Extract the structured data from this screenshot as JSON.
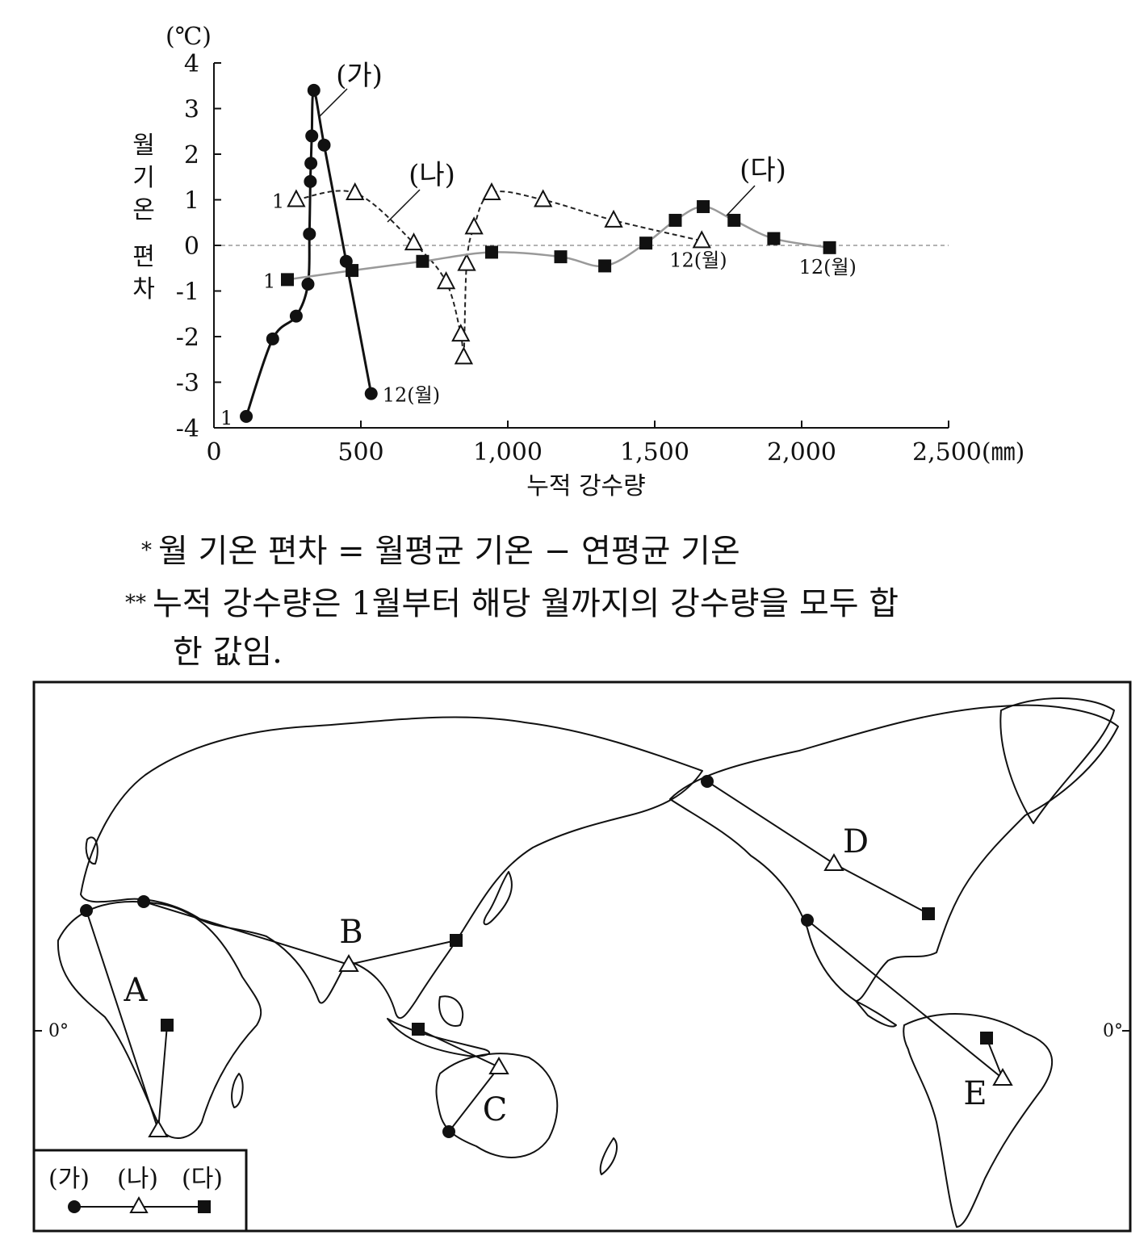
{
  "chart_data": {
    "type": "line",
    "y_unit": "(℃)",
    "ylabel": "월 기온 편차",
    "xlabel": "누적 강수량",
    "xlim": [
      0,
      2500
    ],
    "ylim": [
      -4,
      4
    ],
    "x_ticks": [
      "0",
      "500",
      "1,000",
      "1,500",
      "2,000",
      "2,500(㎜)"
    ],
    "x_tick_values": [
      0,
      500,
      1000,
      1500,
      2000,
      2500
    ],
    "y_ticks": [
      "4",
      "3",
      "2",
      "1",
      "0",
      "-1",
      "-2",
      "-3",
      "-4"
    ],
    "y_tick_values": [
      4,
      3,
      2,
      1,
      0,
      -1,
      -2,
      -3,
      -4
    ],
    "series": [
      {
        "name": "(가)",
        "marker": "circle",
        "line": "solid-black",
        "start_label": "1",
        "end_label": "12(월)",
        "x": [
          110,
          200,
          280,
          320,
          325,
          328,
          330,
          333,
          340,
          375,
          450,
          535
        ],
        "y": [
          -3.75,
          -2.05,
          -1.55,
          -0.85,
          0.25,
          1.4,
          1.8,
          2.4,
          3.4,
          2.2,
          -0.35,
          -3.25
        ]
      },
      {
        "name": "(나)",
        "marker": "triangle",
        "line": "dashed",
        "start_label": "1",
        "end_label": "12(월)",
        "x": [
          280,
          480,
          680,
          790,
          840,
          850,
          860,
          885,
          945,
          1120,
          1360,
          1660
        ],
        "y": [
          1.0,
          1.15,
          0.05,
          -0.8,
          -1.95,
          -2.45,
          -0.4,
          0.4,
          1.15,
          1.0,
          0.55,
          0.1
        ]
      },
      {
        "name": "(다)",
        "marker": "square",
        "line": "solid-gray",
        "start_label": "1",
        "end_label": "12(월)",
        "x": [
          250,
          470,
          710,
          945,
          1180,
          1330,
          1470,
          1570,
          1665,
          1770,
          1905,
          2095
        ],
        "y": [
          -0.75,
          -0.55,
          -0.35,
          -0.15,
          -0.25,
          -0.45,
          0.05,
          0.55,
          0.85,
          0.55,
          0.15,
          -0.05
        ]
      }
    ],
    "reference_line_y": 0
  },
  "notes": {
    "note1_mark": "*",
    "note1": "월 기온 편차 = 월평균 기온 − 연평균 기온",
    "note2_mark": "**",
    "note2_line1": "누적 강수량은 1월부터 해당 월까지의 강수량을 모두 합",
    "note2_line2": "한 값임."
  },
  "map": {
    "routes": [
      {
        "label": "A"
      },
      {
        "label": "B"
      },
      {
        "label": "C"
      },
      {
        "label": "D"
      },
      {
        "label": "E"
      }
    ],
    "equator_left": "0°",
    "equator_right": "0°",
    "legend": {
      "labels": [
        "(가)",
        "(나)",
        "(다)"
      ]
    }
  }
}
